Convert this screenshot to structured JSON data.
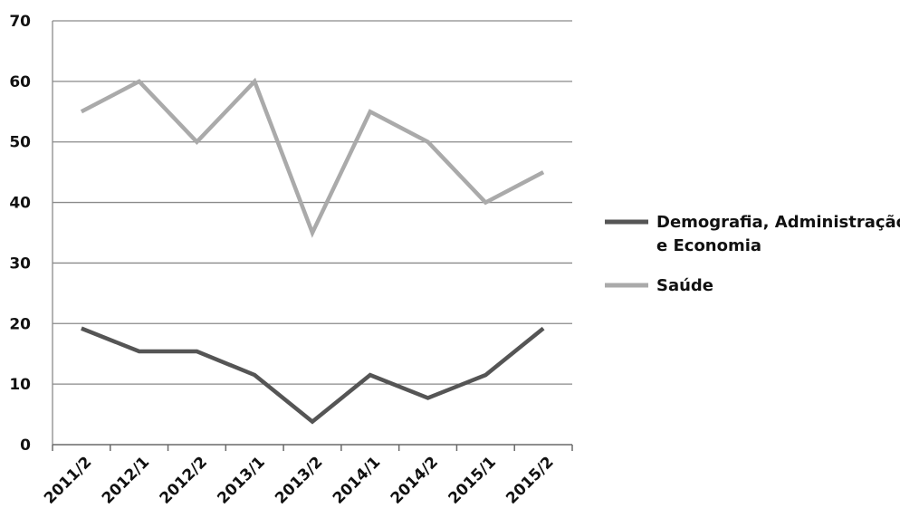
{
  "chart_data": {
    "type": "line",
    "categories": [
      "2011/2",
      "2012/1",
      "2012/2",
      "2013/1",
      "2013/2",
      "2014/1",
      "2014/2",
      "2015/1",
      "2015/2"
    ],
    "series": [
      {
        "name": "Demografia, Administração e Economia",
        "name_lines": [
          "Demografia, Administração",
          "e Economia"
        ],
        "color": "#555555",
        "values": [
          19.2,
          15.4,
          15.4,
          11.5,
          3.8,
          11.5,
          7.7,
          11.5,
          19.2
        ]
      },
      {
        "name": "Saúde",
        "name_lines": [
          "Saúde"
        ],
        "color": "#aaaaaa",
        "values": [
          55,
          60,
          50,
          60,
          35,
          55,
          50,
          40,
          45
        ]
      }
    ],
    "ylim": [
      0,
      70
    ],
    "yticks": [
      0,
      10,
      20,
      30,
      40,
      50,
      60,
      70
    ],
    "grid": true,
    "legend_position": "right"
  }
}
